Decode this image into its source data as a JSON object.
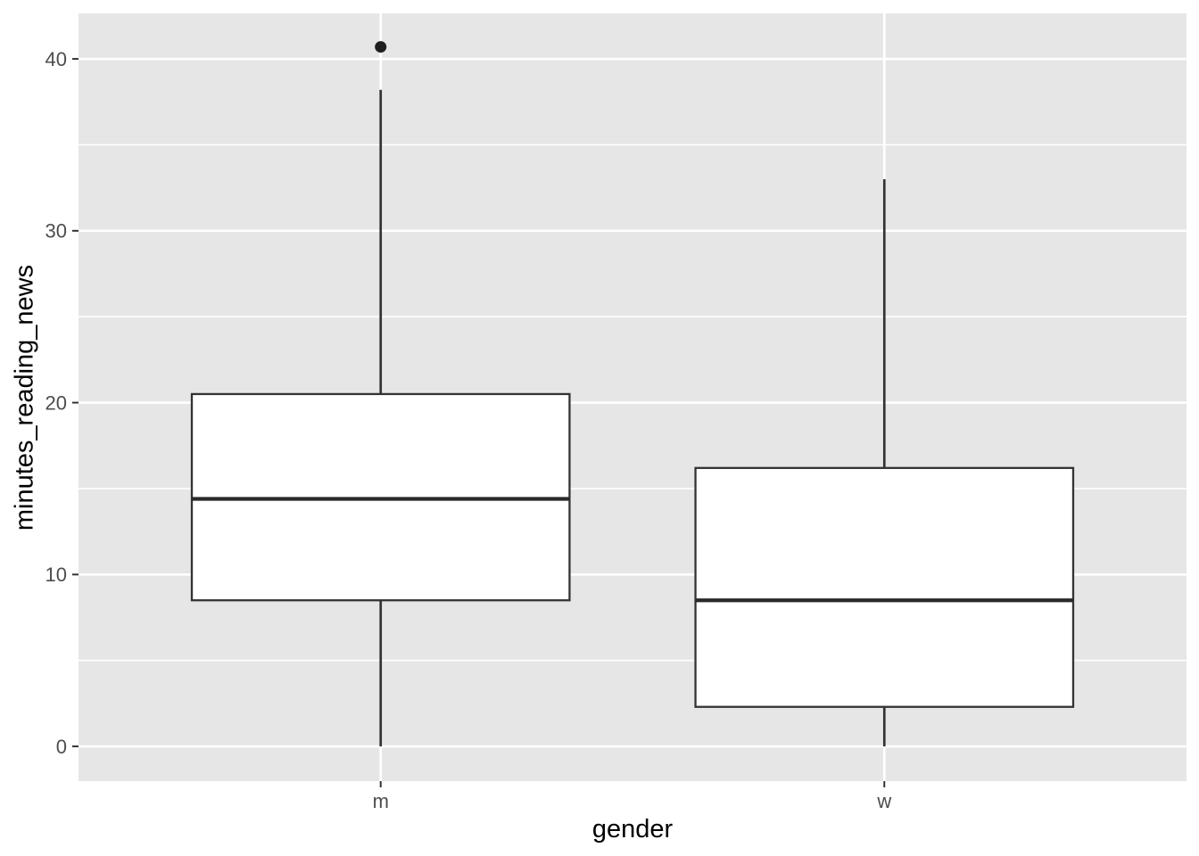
{
  "chart_data": {
    "type": "boxplot",
    "title": "",
    "xlabel": "gender",
    "ylabel": "minutes_reading_news",
    "categories": [
      "m",
      "w"
    ],
    "x_tick_labels": [
      "m",
      "w"
    ],
    "y_tick_labels": [
      "0",
      "10",
      "20",
      "30",
      "40"
    ],
    "y_major_ticks": [
      0,
      10,
      20,
      30,
      40
    ],
    "y_minor_ticks": [
      5,
      15,
      25,
      35
    ],
    "ylim": [
      -2.02,
      42.65
    ],
    "xlim": [
      0.4,
      2.6
    ],
    "box_width": 0.75,
    "grid": "white major and minor horizontal gridlines, white vertical gridline per category, on grey panel",
    "legend_position": "none",
    "series": [
      {
        "category": "m",
        "x": 1,
        "whisker_low": 0,
        "q1": 8.5,
        "median": 14.4,
        "q3": 20.5,
        "whisker_high": 38.2,
        "outliers": [
          40.7
        ]
      },
      {
        "category": "w",
        "x": 2,
        "whisker_low": 0,
        "q1": 2.3,
        "median": 8.5,
        "q3": 16.2,
        "whisker_high": 33.0,
        "outliers": []
      }
    ],
    "colors": {
      "figure_bg": "#FFFFFF",
      "panel_bg": "#E6E6E6",
      "grid": "#FFFFFF",
      "box_fill": "#FFFFFF",
      "box_stroke": "#333333",
      "median_stroke": "#2A2A2A",
      "outlier_fill": "#1F1F1F",
      "tick_mark": "#333333",
      "tick_label": "#4D4D4D",
      "axis_title": "#000000"
    }
  }
}
